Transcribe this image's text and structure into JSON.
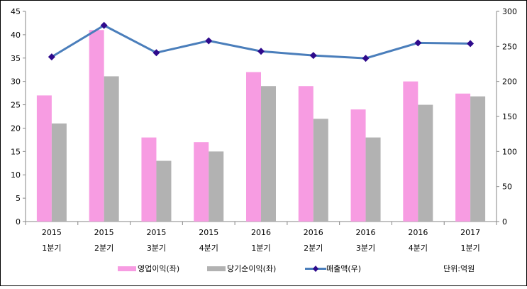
{
  "chart_data": {
    "type": "bar",
    "title": "",
    "categories": [
      [
        "2015",
        "1분기"
      ],
      [
        "2015",
        "2분기"
      ],
      [
        "2015",
        "3분기"
      ],
      [
        "2015",
        "4분기"
      ],
      [
        "2016",
        "1분기"
      ],
      [
        "2016",
        "2분기"
      ],
      [
        "2016",
        "3분기"
      ],
      [
        "2016",
        "4분기"
      ],
      [
        "2017",
        "1분기"
      ]
    ],
    "series": [
      {
        "name": "영업이익(좌)",
        "type": "bar",
        "axis": "left",
        "color": "#f79ce2",
        "values": [
          27,
          41,
          18,
          17,
          32,
          29,
          24,
          30,
          27.4
        ]
      },
      {
        "name": "당기순이익(좌)",
        "type": "bar",
        "axis": "left",
        "color": "#b2b2b2",
        "values": [
          21,
          31.1,
          13,
          15,
          29,
          22,
          18,
          25,
          26.8
        ]
      },
      {
        "name": "매출액(우)",
        "type": "line",
        "axis": "right",
        "color": "#4a7ebb",
        "marker_color": "#2e0a8c",
        "values": [
          235,
          280,
          241,
          258,
          243,
          237,
          233,
          255,
          254
        ]
      }
    ],
    "unit": "단위:억원",
    "ylim_left": [
      0,
      45
    ],
    "yticks_left": [
      0,
      5,
      10,
      15,
      20,
      25,
      30,
      35,
      40,
      45
    ],
    "ylim_right": [
      0,
      300
    ],
    "yticks_right": [
      0,
      50,
      100,
      150,
      200,
      250,
      300
    ],
    "legend": "bottom",
    "grid": false
  }
}
